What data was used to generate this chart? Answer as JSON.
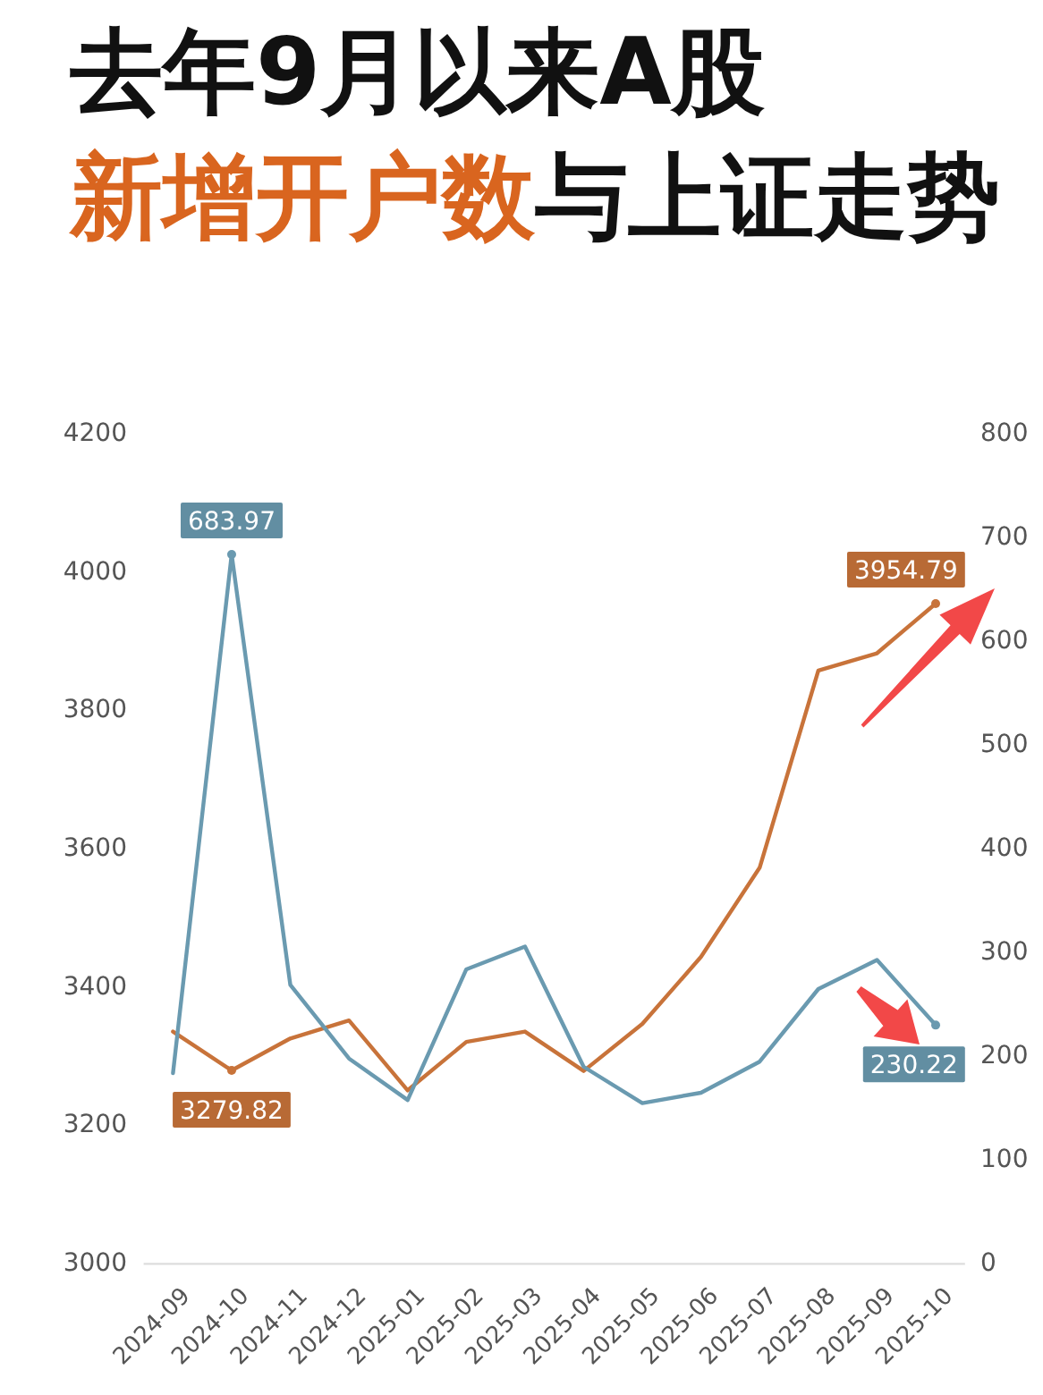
{
  "chart_data": {
    "type": "line",
    "title": "去年9月以来A股",
    "subtitle": "新增开户数与上证走势",
    "categories": [
      "2024-09",
      "2024-10",
      "2024-11",
      "2024-12",
      "2025-01",
      "2025-02",
      "2025-03",
      "2025-04",
      "2025-05",
      "2025-06",
      "2025-07",
      "2025-08",
      "2025-09",
      "2025-10"
    ],
    "series": [
      {
        "color": "#c8733a",
        "values": [
          3336,
          3279.82,
          3326,
          3352,
          3251,
          3321,
          3336,
          3279,
          3347,
          3444,
          3573,
          3858,
          3883,
          3954.79
        ],
        "value_labels": [
          null,
          "3279.82",
          null,
          null,
          null,
          null,
          null,
          null,
          null,
          null,
          null,
          null,
          null,
          "3954.79"
        ]
      },
      {
        "color": "#6a9ab0",
        "axis": "y2",
        "values": [
          184,
          683.97,
          269,
          198,
          158,
          284,
          306,
          190,
          155,
          165,
          195,
          265,
          293,
          230.22
        ],
        "value_labels": [
          null,
          "683.97",
          null,
          null,
          null,
          null,
          null,
          null,
          null,
          null,
          null,
          null,
          null,
          "230.22"
        ]
      }
    ],
    "ylim": [
      3000,
      4200
    ],
    "yticks": [
      3000,
      3200,
      3400,
      3600,
      3800,
      4000,
      4200
    ],
    "y2lim": [
      0,
      800
    ],
    "y2ticks": [
      0,
      100,
      200,
      300,
      400,
      500,
      600,
      700,
      800
    ],
    "marker": "none",
    "line_style": "solid"
  }
}
